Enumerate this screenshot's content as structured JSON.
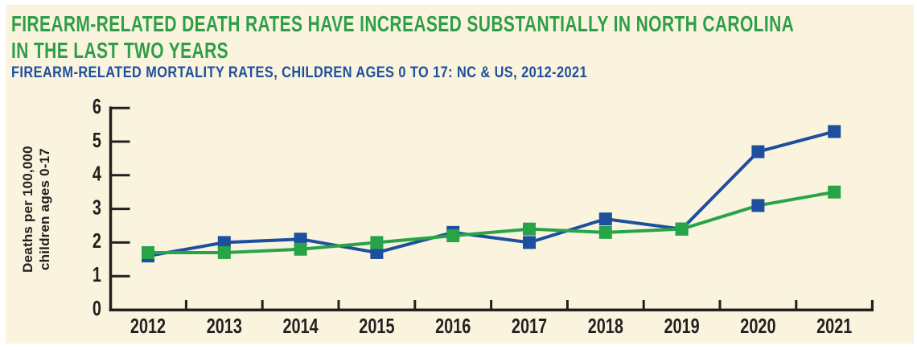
{
  "page": {
    "background": "#FAF4DE",
    "border_color": "#FFFFFF"
  },
  "header": {
    "title_color": "#2F9E48",
    "subtitle_color": "#1D4F9E"
  },
  "chart_data": {
    "type": "line",
    "title": "FIREARM-RELATED DEATH RATES HAVE INCREASED SUBSTANTIALLY IN NORTH CAROLINA IN THE LAST TWO YEARS",
    "subtitle": "FIREARM-RELATED MORTALITY RATES, CHILDREN AGES 0 TO 17: NC & US, 2012-2021",
    "x": [
      "2012",
      "2013",
      "2014",
      "2015",
      "2016",
      "2017",
      "2018",
      "2019",
      "2020",
      "2021"
    ],
    "series": [
      {
        "name": "NC",
        "color": "#1D4F9E",
        "marker": "square",
        "values": [
          1.6,
          2.0,
          2.1,
          1.7,
          2.3,
          2.0,
          2.7,
          2.4,
          4.7,
          5.3
        ]
      },
      {
        "name": "US",
        "color": "#28A448",
        "marker": "square",
        "values": [
          1.7,
          1.7,
          1.8,
          2.0,
          2.2,
          2.4,
          2.3,
          2.4,
          3.1,
          3.5
        ],
        "marker_color_overrides": {
          "2020": "#1D4F9E"
        }
      }
    ],
    "ylim": [
      0,
      6
    ],
    "yticks": [
      0,
      1,
      2,
      3,
      4,
      5,
      6
    ],
    "ylabel_lines": [
      "Deaths per 100,000",
      "children ages 0-17"
    ],
    "xlabel": "",
    "grid": false,
    "legend": "none",
    "axis_color": "#231F20"
  }
}
